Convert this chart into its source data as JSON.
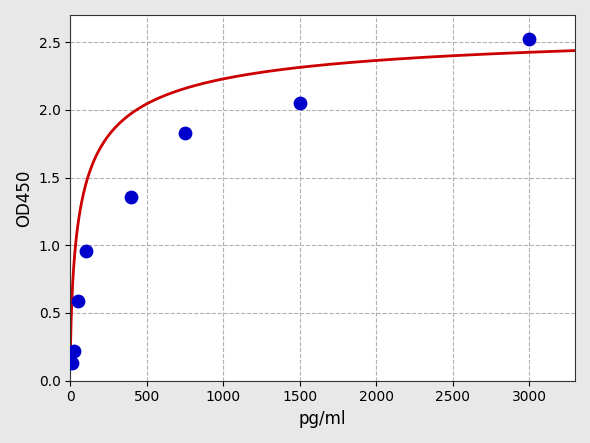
{
  "x_data": [
    12.5,
    25,
    50,
    100,
    400,
    750,
    1500,
    3000
  ],
  "y_data": [
    0.13,
    0.22,
    0.59,
    0.96,
    1.36,
    1.83,
    2.05,
    2.52
  ],
  "xlabel": "pg/ml",
  "ylabel": "OD450",
  "xlim": [
    0,
    3300
  ],
  "ylim": [
    0,
    2.7
  ],
  "xticks": [
    0,
    500,
    1000,
    1500,
    2000,
    2500,
    3000
  ],
  "yticks": [
    0.0,
    0.5,
    1.0,
    1.5,
    2.0,
    2.5
  ],
  "dot_color": "#0000cc",
  "curve_color": "#cc0000",
  "background_color": "#e8e8e8",
  "plot_bg_color": "#ffffff",
  "grid_color": "#aaaaaa",
  "curve_A": 0.05,
  "curve_B": 2.65,
  "curve_C": 80.0,
  "curve_D": 0.65,
  "fig_width": 5.9,
  "fig_height": 4.43,
  "dpi": 100
}
